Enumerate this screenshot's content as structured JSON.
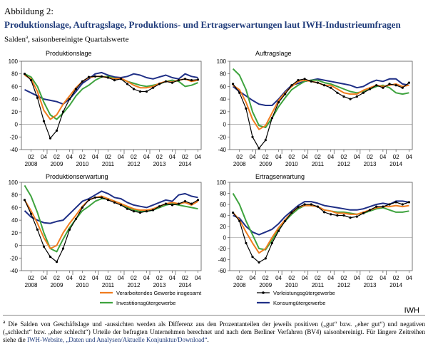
{
  "header": {
    "caption": "Abbildung 2:",
    "title": "Produktionslage, Auftragslage, Produktions- und Ertragserwartungen laut IWH-Industrieumfragen",
    "subtitle": "Salden",
    "subtitle_sup": "a",
    "subtitle_rest": ", saisonbereinigte Quartalswerte"
  },
  "legend": {
    "items": [
      {
        "key": "vg",
        "label": "Verarbeitendes Gewerbe insgesamt"
      },
      {
        "key": "vl",
        "label": "Vorleistungsgütergewerbe"
      },
      {
        "key": "ig",
        "label": "Investitionsgütergewerbe"
      },
      {
        "key": "kg",
        "label": "Konsumgütergewerbe"
      }
    ]
  },
  "colors": {
    "vg": "#f07c1e",
    "vl": "#000000",
    "ig": "#3ea33e",
    "kg": "#1f2f86"
  },
  "x_axis": {
    "quarter_labels": [
      "02",
      "04",
      "02",
      "04",
      "02",
      "04",
      "02",
      "04",
      "02",
      "04",
      "02",
      "04",
      "02",
      "04"
    ],
    "year_labels": [
      "2008",
      "2009",
      "2010",
      "2011",
      "2012",
      "2013",
      "2014"
    ]
  },
  "brand": "IWH",
  "footnote": {
    "sup": "a",
    "text1": "Die Salden von Geschäftslage und -aussichten werden als Differenz aus den Prozentanteilen der jeweils positiven („gut“ bzw. „eher gut“) und negativen („schlecht“ bzw. „eher schlecht“) Urteile der befragten Unternehmen berechnet und nach dem Berliner Verfahren (BV4) saisonbereinigt. Für längere Zeitreihen siehe die ",
    "link": "IWH-Website, „Daten und Analysen/Aktuelle Konjunktur/Download“",
    "text2": "."
  },
  "chart_data": [
    {
      "type": "line",
      "title": "Produktionslage",
      "ylim": [
        -40,
        100
      ],
      "yticks": [
        -40,
        -20,
        0,
        20,
        40,
        60,
        80,
        100
      ],
      "x": [
        "2008Q1",
        "2008Q2",
        "2008Q3",
        "2008Q4",
        "2009Q1",
        "2009Q2",
        "2009Q3",
        "2009Q4",
        "2010Q1",
        "2010Q2",
        "2010Q3",
        "2010Q4",
        "2011Q1",
        "2011Q2",
        "2011Q3",
        "2011Q4",
        "2012Q1",
        "2012Q2",
        "2012Q3",
        "2012Q4",
        "2013Q1",
        "2013Q2",
        "2013Q3",
        "2013Q4",
        "2014Q1",
        "2014Q2",
        "2014Q3",
        "2014Q4"
      ],
      "series": [
        {
          "key": "vg",
          "values": [
            78,
            72,
            52,
            22,
            8,
            15,
            32,
            45,
            58,
            68,
            74,
            76,
            76,
            74,
            72,
            73,
            68,
            62,
            58,
            58,
            60,
            65,
            68,
            67,
            70,
            72,
            68,
            70
          ]
        },
        {
          "key": "vl",
          "values": [
            80,
            70,
            42,
            5,
            -22,
            -10,
            20,
            40,
            56,
            68,
            75,
            76,
            76,
            74,
            70,
            72,
            64,
            56,
            52,
            52,
            58,
            64,
            68,
            66,
            70,
            72,
            70,
            71
          ]
        },
        {
          "key": "ig",
          "values": [
            80,
            75,
            60,
            35,
            15,
            8,
            18,
            30,
            45,
            56,
            62,
            70,
            75,
            76,
            73,
            72,
            68,
            65,
            62,
            60,
            62,
            64,
            68,
            70,
            68,
            60,
            62,
            66
          ]
        },
        {
          "key": "kg",
          "values": [
            55,
            50,
            45,
            40,
            38,
            36,
            32,
            40,
            52,
            65,
            72,
            80,
            82,
            78,
            75,
            74,
            76,
            80,
            78,
            74,
            72,
            75,
            78,
            74,
            72,
            80,
            76,
            74
          ]
        }
      ]
    },
    {
      "type": "line",
      "title": "Auftragslage",
      "ylim": [
        -40,
        100
      ],
      "yticks": [
        -40,
        -20,
        0,
        20,
        40,
        60,
        80,
        100
      ],
      "x": [
        "2008Q1",
        "2008Q2",
        "2008Q3",
        "2008Q4",
        "2009Q1",
        "2009Q2",
        "2009Q3",
        "2009Q4",
        "2010Q1",
        "2010Q2",
        "2010Q3",
        "2010Q4",
        "2011Q1",
        "2011Q2",
        "2011Q3",
        "2011Q4",
        "2012Q1",
        "2012Q2",
        "2012Q3",
        "2012Q4",
        "2013Q1",
        "2013Q2",
        "2013Q3",
        "2013Q4",
        "2014Q1",
        "2014Q2",
        "2014Q3",
        "2014Q4"
      ],
      "series": [
        {
          "key": "vg",
          "values": [
            62,
            55,
            35,
            8,
            -8,
            -2,
            18,
            38,
            50,
            60,
            68,
            70,
            68,
            66,
            62,
            62,
            56,
            50,
            48,
            48,
            54,
            58,
            62,
            60,
            62,
            64,
            60,
            62
          ]
        },
        {
          "key": "vl",
          "values": [
            64,
            50,
            25,
            -20,
            -38,
            -25,
            10,
            35,
            48,
            62,
            70,
            72,
            68,
            66,
            62,
            58,
            50,
            44,
            40,
            44,
            50,
            56,
            62,
            58,
            64,
            62,
            58,
            66
          ]
        },
        {
          "key": "ig",
          "values": [
            88,
            78,
            55,
            20,
            -2,
            -5,
            10,
            28,
            42,
            55,
            62,
            68,
            70,
            70,
            66,
            64,
            60,
            56,
            52,
            50,
            52,
            56,
            60,
            62,
            58,
            50,
            48,
            50
          ]
        },
        {
          "key": "kg",
          "values": [
            60,
            52,
            45,
            38,
            32,
            30,
            30,
            40,
            52,
            62,
            65,
            68,
            70,
            72,
            70,
            68,
            66,
            64,
            62,
            58,
            60,
            66,
            70,
            68,
            72,
            72,
            64,
            62
          ]
        }
      ]
    },
    {
      "type": "line",
      "title": "Produktionserwartung",
      "ylim": [
        -40,
        100
      ],
      "yticks": [
        -40,
        -20,
        0,
        20,
        40,
        60,
        80,
        100
      ],
      "x": [
        "2008Q1",
        "2008Q2",
        "2008Q3",
        "2008Q4",
        "2009Q1",
        "2009Q2",
        "2009Q3",
        "2009Q4",
        "2010Q1",
        "2010Q2",
        "2010Q3",
        "2010Q4",
        "2011Q1",
        "2011Q2",
        "2011Q3",
        "2011Q4",
        "2012Q1",
        "2012Q2",
        "2012Q3",
        "2012Q4",
        "2013Q1",
        "2013Q2",
        "2013Q3",
        "2013Q4",
        "2014Q1",
        "2014Q2",
        "2014Q3",
        "2014Q4"
      ],
      "series": [
        {
          "key": "vg",
          "values": [
            72,
            55,
            35,
            12,
            -5,
            0,
            20,
            35,
            48,
            62,
            72,
            76,
            78,
            74,
            70,
            66,
            62,
            58,
            56,
            56,
            58,
            62,
            66,
            68,
            66,
            68,
            64,
            70
          ]
        },
        {
          "key": "vl",
          "values": [
            72,
            50,
            25,
            -2,
            -18,
            -26,
            -5,
            25,
            42,
            60,
            72,
            76,
            76,
            72,
            68,
            64,
            58,
            54,
            52,
            54,
            56,
            62,
            66,
            64,
            66,
            70,
            66,
            72
          ]
        },
        {
          "key": "ig",
          "values": [
            95,
            78,
            52,
            20,
            -5,
            -10,
            10,
            28,
            42,
            55,
            62,
            70,
            74,
            74,
            70,
            66,
            60,
            56,
            54,
            54,
            56,
            60,
            64,
            66,
            64,
            62,
            60,
            58
          ]
        },
        {
          "key": "kg",
          "values": [
            55,
            45,
            40,
            36,
            35,
            38,
            40,
            50,
            60,
            70,
            74,
            80,
            86,
            82,
            76,
            74,
            68,
            64,
            62,
            60,
            64,
            68,
            72,
            70,
            80,
            82,
            78,
            76
          ]
        }
      ]
    },
    {
      "type": "line",
      "title": "Ertragserwartung",
      "ylim": [
        -60,
        100
      ],
      "yticks": [
        -60,
        -40,
        -20,
        0,
        20,
        40,
        60,
        80,
        100
      ],
      "x": [
        "2008Q1",
        "2008Q2",
        "2008Q3",
        "2008Q4",
        "2009Q1",
        "2009Q2",
        "2009Q3",
        "2009Q4",
        "2010Q1",
        "2010Q2",
        "2010Q3",
        "2010Q4",
        "2011Q1",
        "2011Q2",
        "2011Q3",
        "2011Q4",
        "2012Q1",
        "2012Q2",
        "2012Q3",
        "2012Q4",
        "2013Q1",
        "2013Q2",
        "2013Q3",
        "2013Q4",
        "2014Q1",
        "2014Q2",
        "2014Q3",
        "2014Q4"
      ],
      "series": [
        {
          "key": "vg",
          "values": [
            45,
            32,
            10,
            -10,
            -28,
            -20,
            0,
            18,
            32,
            45,
            55,
            58,
            58,
            56,
            50,
            48,
            44,
            44,
            42,
            42,
            46,
            50,
            54,
            56,
            56,
            58,
            56,
            58
          ]
        },
        {
          "key": "vl",
          "values": [
            45,
            30,
            -10,
            -35,
            -45,
            -38,
            -10,
            12,
            30,
            45,
            55,
            60,
            60,
            56,
            46,
            42,
            40,
            40,
            36,
            38,
            44,
            50,
            56,
            56,
            60,
            64,
            60,
            64
          ]
        },
        {
          "key": "ig",
          "values": [
            80,
            60,
            30,
            5,
            -20,
            -22,
            -5,
            15,
            30,
            42,
            52,
            58,
            58,
            56,
            50,
            48,
            46,
            46,
            44,
            42,
            44,
            48,
            52,
            54,
            50,
            46,
            46,
            48
          ]
        },
        {
          "key": "kg",
          "values": [
            40,
            35,
            20,
            10,
            5,
            10,
            15,
            25,
            38,
            48,
            58,
            65,
            65,
            62,
            58,
            56,
            54,
            52,
            50,
            50,
            52,
            56,
            60,
            62,
            60,
            66,
            66,
            64
          ]
        }
      ]
    }
  ]
}
